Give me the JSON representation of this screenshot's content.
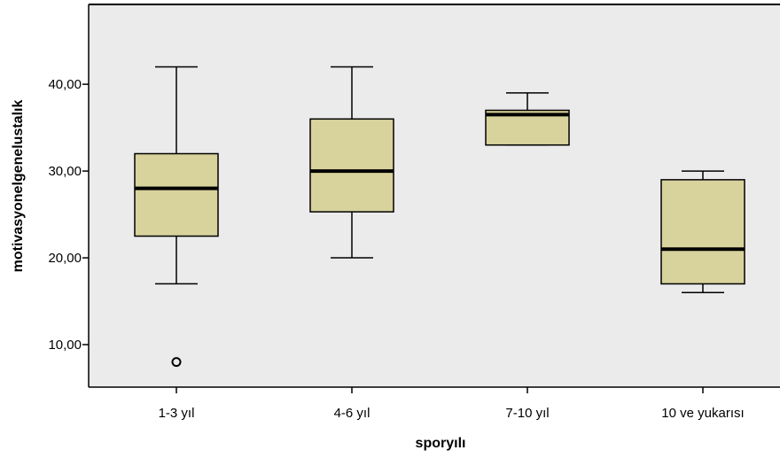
{
  "chart_data": {
    "type": "boxplot",
    "xlabel": "sporyılı",
    "ylabel": "motivasyonelgenelustalık",
    "categories": [
      "1-3 yıl",
      "4-6 yıl",
      "7-10 yıl",
      "10 ve yukarısı"
    ],
    "boxes": [
      {
        "category": "1-3 yıl",
        "min": 17,
        "q1": 22.5,
        "median": 28,
        "q3": 32,
        "max": 42,
        "outliers": [
          8
        ]
      },
      {
        "category": "4-6 yıl",
        "min": 20,
        "q1": 25.3,
        "median": 30,
        "q3": 36,
        "max": 42,
        "outliers": []
      },
      {
        "category": "7-10 yıl",
        "min": 33,
        "q1": 33,
        "median": 36.5,
        "q3": 37,
        "max": 39,
        "outliers": []
      },
      {
        "category": "10 ve yukarısı",
        "min": 16,
        "q1": 17,
        "median": 21,
        "q3": 29,
        "max": 30,
        "outliers": []
      }
    ],
    "yticks": [
      {
        "value": 10,
        "label": "10,00"
      },
      {
        "value": 20,
        "label": "20,00"
      },
      {
        "value": 30,
        "label": "30,00"
      },
      {
        "value": 40,
        "label": "40,00"
      }
    ],
    "ylim": [
      5.1,
      49.2
    ],
    "grid": false,
    "colors": {
      "plot_background": "#ebebeb",
      "box_fill": "#d8d29c",
      "stroke": "#000000"
    }
  }
}
